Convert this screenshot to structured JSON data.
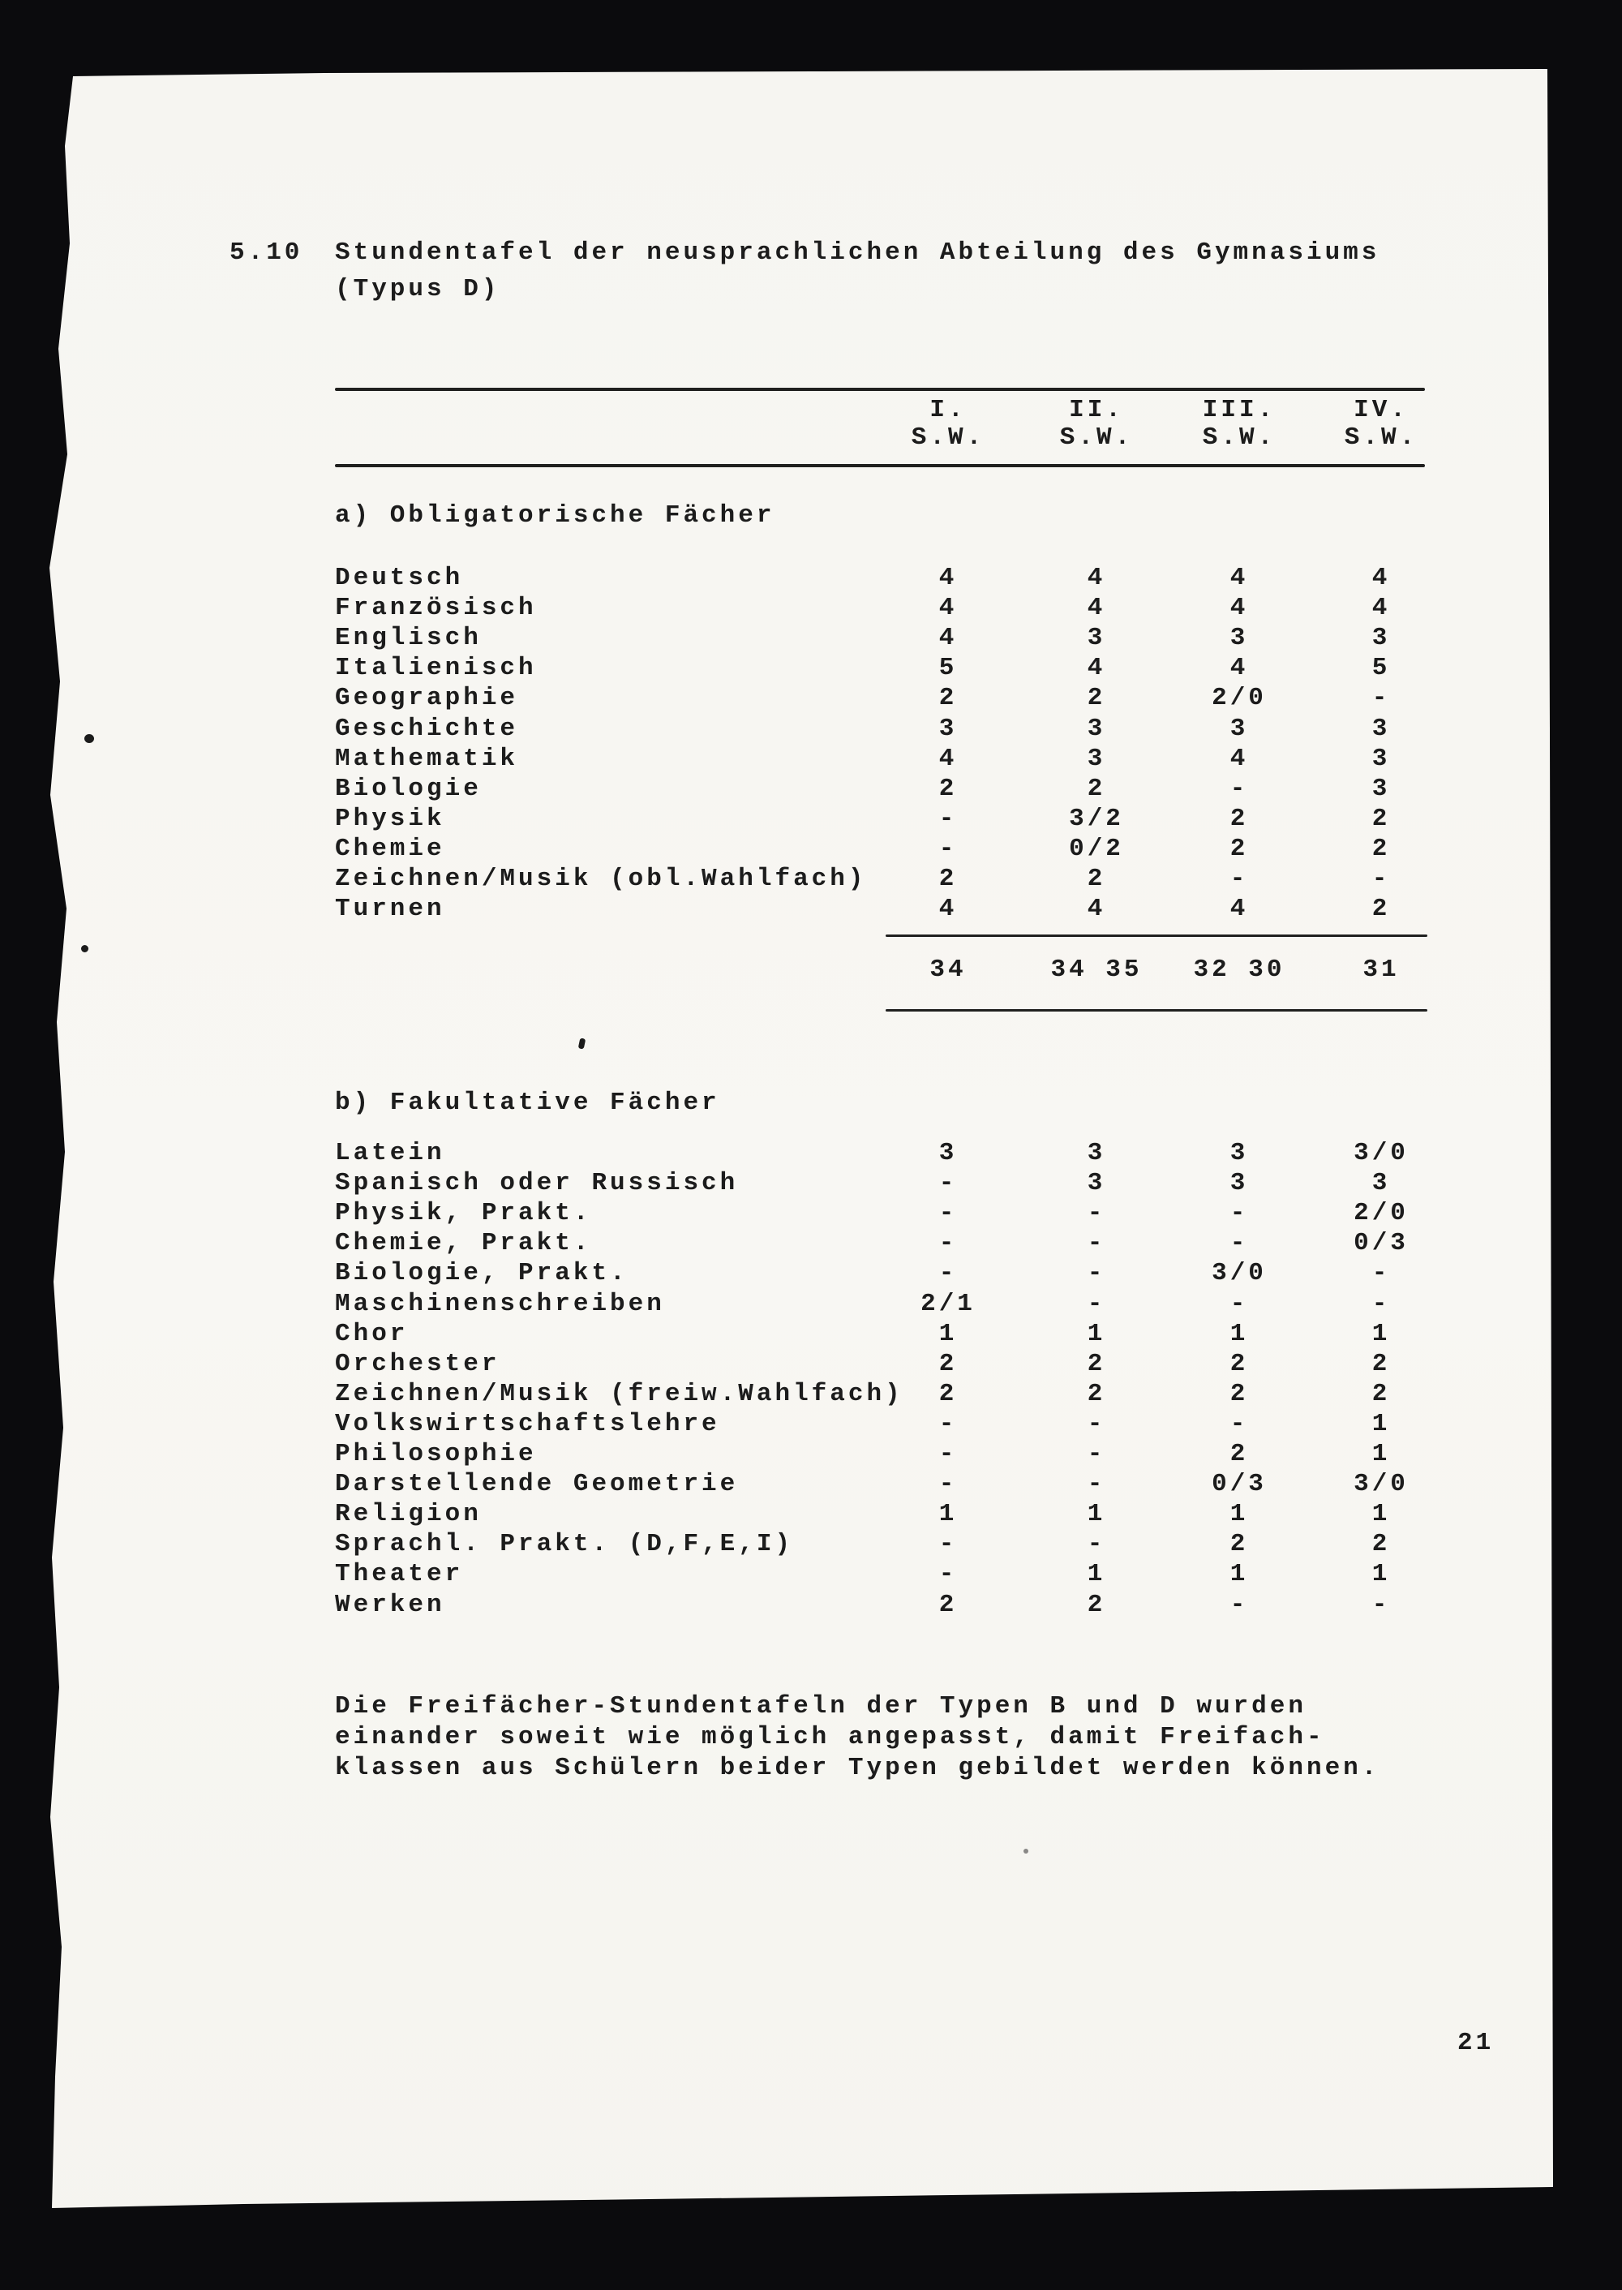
{
  "doc": {
    "section_number": "5.10",
    "title_line1": "Stundentafel der neusprachlichen Abteilung des Gymnasiums",
    "title_line2": "(Typus D)",
    "page_number": "21"
  },
  "table": {
    "columns": [
      "I.",
      "II.",
      "III.",
      "IV."
    ],
    "sub_columns": [
      "S.W.",
      "S.W.",
      "S.W.",
      "S.W."
    ],
    "section_a": {
      "heading": "a) Obligatorische Fächer",
      "rows": [
        {
          "label": "Deutsch",
          "values": [
            "4",
            "4",
            "4",
            "4"
          ]
        },
        {
          "label": "Französisch",
          "values": [
            "4",
            "4",
            "4",
            "4"
          ]
        },
        {
          "label": "Englisch",
          "values": [
            "4",
            "3",
            "3",
            "3"
          ]
        },
        {
          "label": "Italienisch",
          "values": [
            "5",
            "4",
            "4",
            "5"
          ]
        },
        {
          "label": "Geographie",
          "values": [
            "2",
            "2",
            "2/0",
            "-"
          ]
        },
        {
          "label": "Geschichte",
          "values": [
            "3",
            "3",
            "3",
            "3"
          ]
        },
        {
          "label": "Mathematik",
          "values": [
            "4",
            "3",
            "4",
            "3"
          ]
        },
        {
          "label": "Biologie",
          "values": [
            "2",
            "2",
            "-",
            "3"
          ]
        },
        {
          "label": "Physik",
          "values": [
            "-",
            "3/2",
            "2",
            "2"
          ]
        },
        {
          "label": "Chemie",
          "values": [
            "-",
            "0/2",
            "2",
            "2"
          ]
        },
        {
          "label": "Zeichnen/Musik (obl.Wahlfach)",
          "values": [
            "2",
            "2",
            "-",
            "-"
          ]
        },
        {
          "label": "Turnen",
          "values": [
            "4",
            "4",
            "4",
            "2"
          ]
        }
      ],
      "totals": [
        "34",
        "34 35",
        "32 30",
        "31"
      ]
    },
    "section_b": {
      "heading": "b) Fakultative Fächer",
      "rows": [
        {
          "label": "Latein",
          "values": [
            "3",
            "3",
            "3",
            "3/0"
          ]
        },
        {
          "label": "Spanisch oder Russisch",
          "values": [
            "-",
            "3",
            "3",
            "3"
          ]
        },
        {
          "label": "Physik, Prakt.",
          "values": [
            "-",
            "-",
            "-",
            "2/0"
          ]
        },
        {
          "label": "Chemie, Prakt.",
          "values": [
            "-",
            "-",
            "-",
            "0/3"
          ]
        },
        {
          "label": "Biologie, Prakt.",
          "values": [
            "-",
            "-",
            "3/0",
            "-"
          ]
        },
        {
          "label": "Maschinenschreiben",
          "values": [
            "2/1",
            "-",
            "-",
            "-"
          ]
        },
        {
          "label": "Chor",
          "values": [
            "1",
            "1",
            "1",
            "1"
          ]
        },
        {
          "label": "Orchester",
          "values": [
            "2",
            "2",
            "2",
            "2"
          ]
        },
        {
          "label": "Zeichnen/Musik (freiw.Wahlfach)",
          "values": [
            "2",
            "2",
            "2",
            "2"
          ]
        },
        {
          "label": "Volkswirtschaftslehre",
          "values": [
            "-",
            "-",
            "-",
            "1"
          ]
        },
        {
          "label": "Philosophie",
          "values": [
            "-",
            "-",
            "2",
            "1"
          ]
        },
        {
          "label": "Darstellende Geometrie",
          "values": [
            "-",
            "-",
            "0/3",
            "3/0"
          ]
        },
        {
          "label": "Religion",
          "values": [
            "1",
            "1",
            "1",
            "1"
          ]
        },
        {
          "label": "Sprachl. Prakt. (D,F,E,I)",
          "values": [
            "-",
            "-",
            "2",
            "2"
          ]
        },
        {
          "label": "Theater",
          "values": [
            "-",
            "1",
            "1",
            "1"
          ]
        },
        {
          "label": "Werken",
          "values": [
            "2",
            "2",
            "-",
            "-"
          ]
        }
      ]
    }
  },
  "footer": {
    "lines": [
      "Die Freifächer-Stundentafeln der Typen B und D wurden",
      "einander soweit wie möglich angepasst, damit Freifach-",
      "klassen aus Schülern beider Typen gebildet werden können."
    ]
  }
}
